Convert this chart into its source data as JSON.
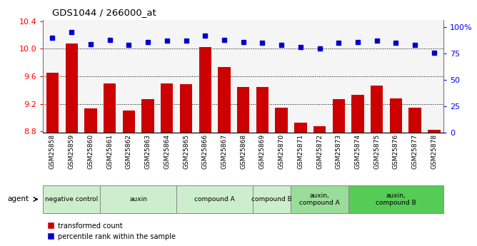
{
  "title": "GDS1044 / 266000_at",
  "samples": [
    "GSM25858",
    "GSM25859",
    "GSM25860",
    "GSM25861",
    "GSM25862",
    "GSM25863",
    "GSM25864",
    "GSM25865",
    "GSM25866",
    "GSM25867",
    "GSM25868",
    "GSM25869",
    "GSM25870",
    "GSM25871",
    "GSM25872",
    "GSM25873",
    "GSM25874",
    "GSM25875",
    "GSM25876",
    "GSM25877",
    "GSM25878"
  ],
  "bar_values": [
    9.65,
    10.08,
    9.13,
    9.5,
    9.1,
    9.27,
    9.5,
    9.49,
    10.02,
    9.73,
    9.44,
    9.44,
    9.14,
    8.93,
    8.88,
    9.27,
    9.33,
    9.46,
    9.28,
    9.14,
    8.82
  ],
  "dot_values": [
    90,
    95,
    84,
    88,
    83,
    86,
    87,
    87,
    92,
    88,
    86,
    85,
    83,
    81,
    80,
    85,
    86,
    87,
    85,
    83,
    76
  ],
  "bar_color": "#cc0000",
  "dot_color": "#0000cc",
  "ylim_left": [
    8.78,
    10.42
  ],
  "ylim_right": [
    0,
    107
  ],
  "yticks_left": [
    8.8,
    9.2,
    9.6,
    10.0,
    10.4
  ],
  "yticks_right": [
    0,
    25,
    50,
    75,
    100
  ],
  "ytick_labels_right": [
    "0",
    "25",
    "50",
    "75",
    "100%"
  ],
  "gridlines": [
    9.2,
    9.6,
    10.0
  ],
  "agent_groups": [
    {
      "label": "negative control",
      "start": 0,
      "end": 3,
      "color": "#cceecc"
    },
    {
      "label": "auxin",
      "start": 3,
      "end": 7,
      "color": "#cceecc"
    },
    {
      "label": "compound A",
      "start": 7,
      "end": 11,
      "color": "#cceecc"
    },
    {
      "label": "compound B",
      "start": 11,
      "end": 13,
      "color": "#cceecc"
    },
    {
      "label": "auxin,\ncompound A",
      "start": 13,
      "end": 16,
      "color": "#99dd99"
    },
    {
      "label": "auxin,\ncompound B",
      "start": 16,
      "end": 21,
      "color": "#55cc55"
    }
  ],
  "legend_bar_label": "transformed count",
  "legend_dot_label": "percentile rank within the sample",
  "agent_label": "agent"
}
